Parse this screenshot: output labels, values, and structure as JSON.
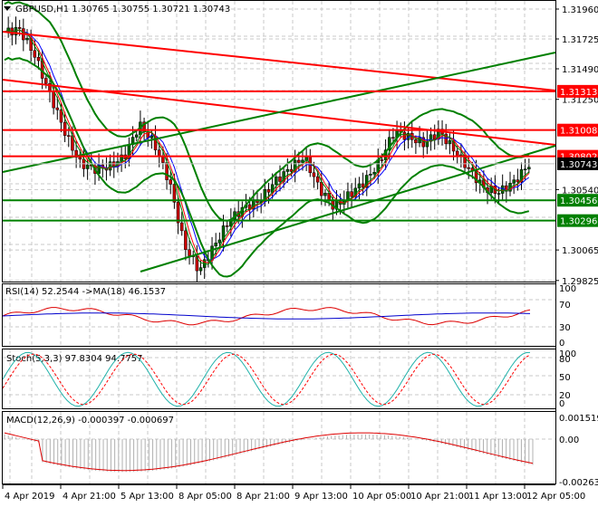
{
  "header": {
    "symbol": "GBPUSD,H1",
    "ohlc": "1.30765 1.30755 1.30721 1.30743",
    "title": "GBPUSD,H1  1.30765 1.30755 1.30721 1.30743"
  },
  "price_axis": {
    "ticks": [
      "1.31960",
      "1.31725",
      "1.31490",
      "1.31250",
      "1.30540",
      "1.30065",
      "1.29825"
    ],
    "tick_values": [
      1.3196,
      1.31725,
      1.3149,
      1.3125,
      1.3054,
      1.30065,
      1.29825
    ],
    "badges": [
      {
        "label": "1.31313",
        "value": 1.31313,
        "color": "#ff0000",
        "text_color": "#ffffff"
      },
      {
        "label": "1.31008",
        "value": 1.31008,
        "color": "#ff0000",
        "text_color": "#ffffff"
      },
      {
        "label": "1.30802",
        "value": 1.30802,
        "color": "#ff0000",
        "text_color": "#ffffff"
      },
      {
        "label": "1.30743",
        "value": 1.30743,
        "color": "#000000",
        "text_color": "#ffffff"
      },
      {
        "label": "1.30456",
        "value": 1.30456,
        "color": "#008000",
        "text_color": "#ffffff"
      },
      {
        "label": "1.30296",
        "value": 1.30296,
        "color": "#008000",
        "text_color": "#ffffff"
      }
    ]
  },
  "rsi_panel": {
    "title": "RSI(14) 52.2544  ->MA(18) 46.1537",
    "ticks": [
      "100",
      "70",
      "30",
      "0"
    ]
  },
  "stoch_panel": {
    "title": "Stoch(5,3,3) 97.8304 94.7757",
    "ticks": [
      "100",
      "80",
      "50",
      "20",
      "0"
    ]
  },
  "macd_panel": {
    "title": "MACD(12,26,9) -0.000397 -0.000697",
    "ticks": [
      "0.001519",
      "0.00",
      "-0.002633"
    ]
  },
  "time_axis": {
    "labels": [
      "4 Apr 2019",
      "4 Apr 21:00",
      "5 Apr 13:00",
      "8 Apr 05:00",
      "8 Apr 21:00",
      "9 Apr 13:00",
      "10 Apr 05:00",
      "10 Apr 21:00",
      "11 Apr 13:00",
      "12 Apr 05:00"
    ]
  },
  "colors": {
    "bull_candle": "#006400",
    "bear_candle": "#cc0000",
    "support_line": "#008000",
    "resistance_line": "#ff0000",
    "grid": "#c0c0c0",
    "rsi": "#dd0000",
    "rsi_ma": "#0000cc",
    "stoch_main": "#20b2aa",
    "stoch_signal": "#ff0000",
    "macd_hist": "#b0b0b0",
    "macd_signal": "#dd0000"
  },
  "chart_data": [
    {
      "type": "candlestick",
      "title": "GBPUSD,H1",
      "ylim": [
        1.2979,
        1.3203
      ],
      "x_labels": [
        "4 Apr 2019",
        "4 Apr 21:00",
        "5 Apr 13:00",
        "8 Apr 05:00",
        "8 Apr 21:00",
        "9 Apr 13:00",
        "10 Apr 05:00",
        "10 Apr 21:00",
        "11 Apr 13:00",
        "12 Apr 05:00"
      ],
      "last_ohlc": {
        "open": 1.30765,
        "high": 1.30755,
        "low": 1.30721,
        "close": 1.30743
      },
      "horizontal_levels": [
        {
          "value": 1.31313,
          "color": "red"
        },
        {
          "value": 1.31008,
          "color": "red"
        },
        {
          "value": 1.30802,
          "color": "red"
        },
        {
          "value": 1.30456,
          "color": "green"
        },
        {
          "value": 1.30296,
          "color": "green"
        }
      ],
      "close_series_approx": [
        1.3178,
        1.318,
        1.316,
        1.313,
        1.31,
        1.3075,
        1.307,
        1.3072,
        1.308,
        1.3105,
        1.309,
        1.306,
        1.301,
        1.299,
        1.301,
        1.303,
        1.304,
        1.3045,
        1.306,
        1.307,
        1.308,
        1.3055,
        1.304,
        1.305,
        1.306,
        1.3075,
        1.31,
        1.3095,
        1.309,
        1.31,
        1.3085,
        1.307,
        1.3055,
        1.3052,
        1.306,
        1.3074
      ]
    },
    {
      "type": "line",
      "title": "RSI(14) 52.2544 ->MA(18) 46.1537",
      "ylim": [
        0,
        100
      ],
      "series": [
        {
          "name": "RSI(14)",
          "last": 52.2544
        },
        {
          "name": "MA(18)",
          "last": 46.1537
        }
      ]
    },
    {
      "type": "line",
      "title": "Stoch(5,3,3) 97.8304 94.7757",
      "ylim": [
        0,
        100
      ],
      "series": [
        {
          "name": "Main",
          "last": 97.8304
        },
        {
          "name": "Signal",
          "last": 94.7757
        }
      ]
    },
    {
      "type": "bar",
      "title": "MACD(12,26,9) -0.000397 -0.000697",
      "ylim": [
        -0.002633,
        0.001519
      ],
      "series": [
        {
          "name": "MACD",
          "last": -0.000397
        },
        {
          "name": "Signal",
          "last": -0.000697
        }
      ]
    }
  ]
}
